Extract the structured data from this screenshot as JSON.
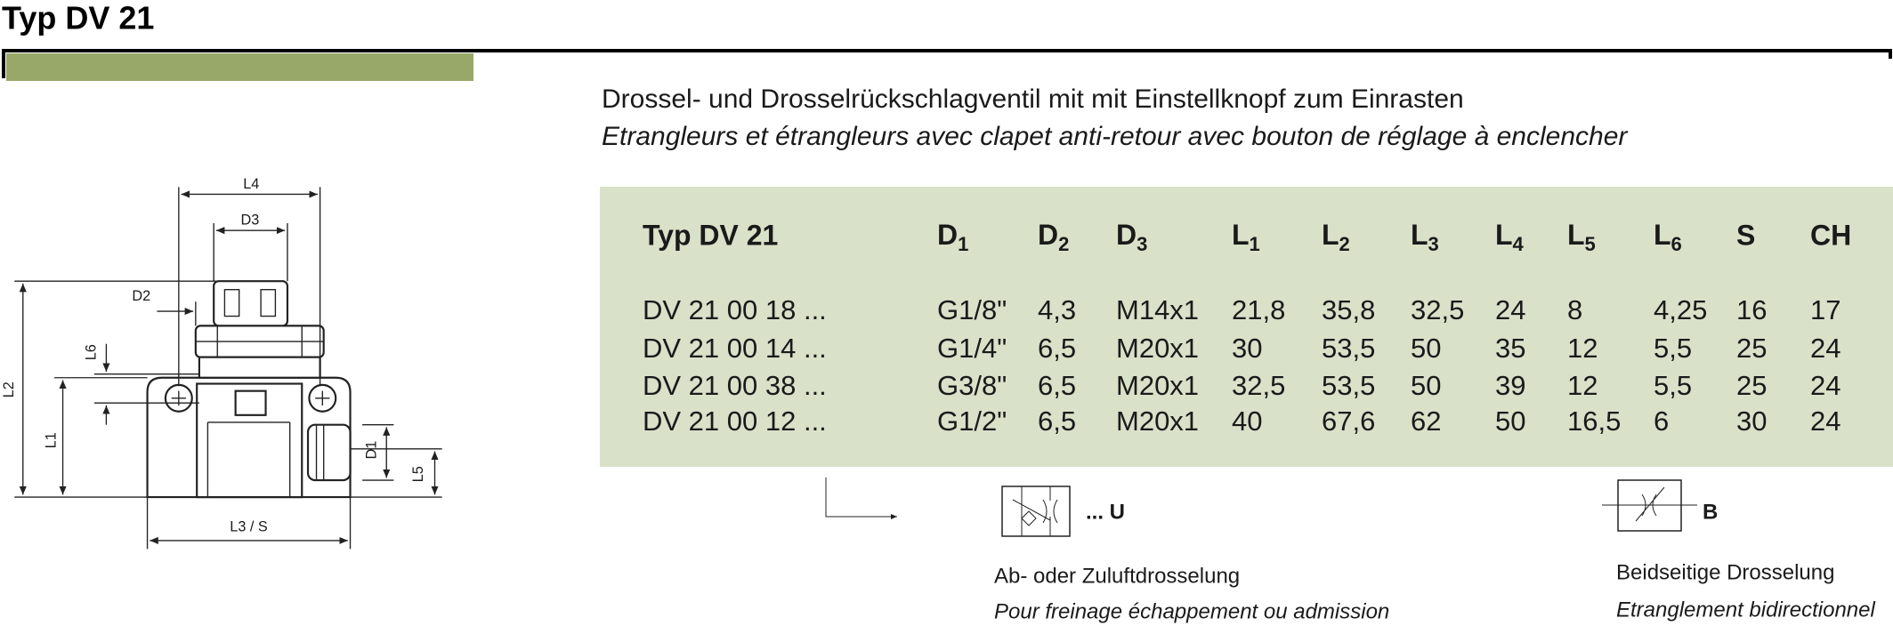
{
  "header": {
    "title": "Typ DV 21"
  },
  "description": {
    "de": "Drossel- und Drosselrückschlagventil mit mit Einstellknopf zum Einrasten",
    "fr": "Etrangleurs et étrangleurs avec clapet anti-retour avec bouton de réglage à enclencher"
  },
  "drawing": {
    "labels": [
      "L4",
      "D3",
      "D2",
      "L6",
      "L2",
      "L1",
      "D1",
      "L5",
      "L3 / S"
    ]
  },
  "table": {
    "headers": [
      "Typ DV 21",
      {
        "text": "D",
        "sub": "1"
      },
      {
        "text": "D",
        "sub": "2"
      },
      {
        "text": "D",
        "sub": "3"
      },
      {
        "text": "L",
        "sub": "1"
      },
      {
        "text": "L",
        "sub": "2"
      },
      {
        "text": "L",
        "sub": "3"
      },
      {
        "text": "L",
        "sub": "4"
      },
      {
        "text": "L",
        "sub": "5"
      },
      {
        "text": "L",
        "sub": "6"
      },
      "S",
      "CH"
    ],
    "rows": [
      [
        "DV 21 00 18 ...",
        "G1/8\"",
        "4,3",
        "M14x1",
        "21,8",
        "35,8",
        "32,5",
        "24",
        "8",
        "4,25",
        "16",
        "17"
      ],
      [
        "DV 21 00 14 ...",
        "G1/4\"",
        "6,5",
        "M20x1",
        "30",
        "53,5",
        "50",
        "35",
        "12",
        "5,5",
        "25",
        "24"
      ],
      [
        "DV 21 00 38 ...",
        "G3/8\"",
        "6,5",
        "M20x1",
        "32,5",
        "53,5",
        "50",
        "39",
        "12",
        "5,5",
        "25",
        "24"
      ],
      [
        "DV 21 00 12 ...",
        "G1/2\"",
        "6,5",
        "M20x1",
        "40",
        "67,6",
        "62",
        "50",
        "16,5",
        "6",
        "30",
        "24"
      ]
    ]
  },
  "symbols": [
    {
      "label": "... U",
      "caption_de": "Ab- oder Zuluftdrosselung",
      "caption_fr": "Pour freinage échappement ou admission"
    },
    {
      "label": "B",
      "caption_de": "Beidseitige Drosselung",
      "caption_fr": "Etranglement bidirectionnel"
    }
  ]
}
